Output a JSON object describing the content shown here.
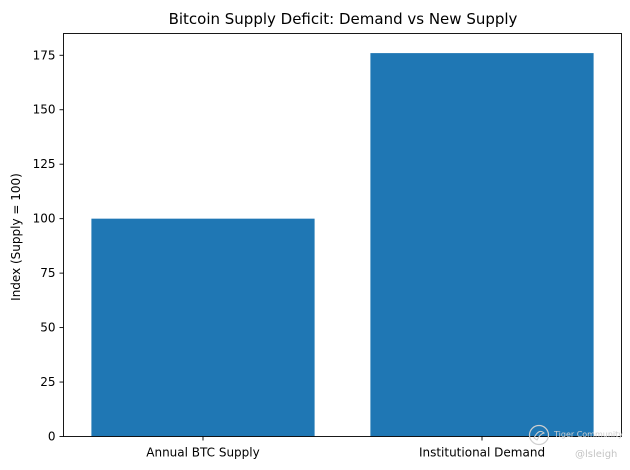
{
  "chart_data": {
    "type": "bar",
    "title": "Bitcoin Supply Deficit: Demand vs New Supply",
    "xlabel": "",
    "ylabel": "Index (Supply = 100)",
    "categories": [
      "Annual BTC Supply",
      "Institutional Demand"
    ],
    "values": [
      100,
      176
    ],
    "ylim": [
      0,
      185
    ],
    "yticks": [
      0,
      25,
      50,
      75,
      100,
      125,
      150,
      175
    ],
    "grid": false,
    "bar_color": "#1f77b4"
  },
  "watermark": {
    "brand": "Tiger Community",
    "handle": "@lsleigh",
    "icon": "tiger-community-logo-icon"
  }
}
